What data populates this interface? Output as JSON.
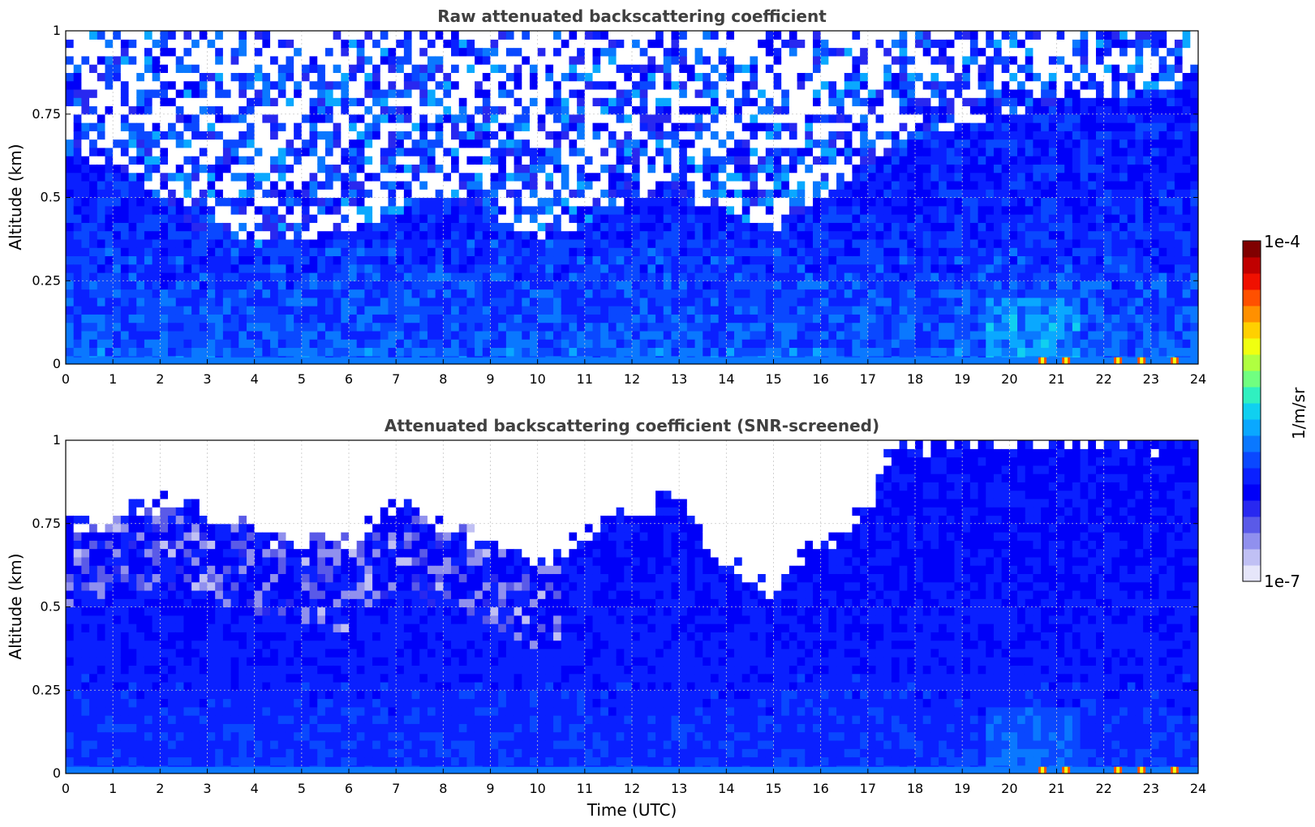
{
  "figure": {
    "shared_xlabel": "Time (UTC)"
  },
  "colorbar": {
    "label": "1/m/sr",
    "min_label": "1e-7",
    "max_label": "1e-4",
    "colors": [
      "#e6e6fa",
      "#c0c0f4",
      "#9090ee",
      "#5a5ae8",
      "#2828f0",
      "#0000f8",
      "#0a20ff",
      "#0a48ff",
      "#0a78ff",
      "#0aa8ff",
      "#10d0f0",
      "#30f0c0",
      "#70ff80",
      "#b0ff40",
      "#f0ff10",
      "#ffd000",
      "#ff9000",
      "#ff5000",
      "#f01000",
      "#c00000",
      "#800000"
    ]
  },
  "chart_data": [
    {
      "type": "heatmap",
      "title": "Raw attenuated backscattering coefficient",
      "xlabel": "",
      "ylabel": "Altitude (km)",
      "xlim": [
        0,
        24
      ],
      "ylim": [
        0,
        1
      ],
      "xticks": [
        "0",
        "1",
        "2",
        "3",
        "4",
        "5",
        "6",
        "7",
        "8",
        "9",
        "10",
        "11",
        "12",
        "13",
        "14",
        "15",
        "16",
        "17",
        "18",
        "19",
        "20",
        "21",
        "22",
        "23",
        "24"
      ],
      "yticks": [
        "0",
        "0.25",
        "0.5",
        "0.75",
        "1"
      ],
      "grid": true,
      "colorscale": "log",
      "value_range": [
        1e-07,
        0.0001
      ],
      "noise_boundary_km": {
        "time": [
          0,
          1,
          2,
          3,
          4,
          5,
          6,
          7,
          8,
          9,
          10,
          11,
          12,
          13,
          14,
          15,
          16,
          17,
          18,
          19,
          20,
          21,
          22,
          23,
          24
        ],
        "altitude": [
          0.62,
          0.6,
          0.5,
          0.38,
          0.36,
          0.38,
          0.4,
          0.45,
          0.5,
          0.45,
          0.38,
          0.42,
          0.5,
          0.5,
          0.45,
          0.4,
          0.5,
          0.6,
          0.68,
          0.72,
          0.75,
          0.78,
          0.8,
          0.82,
          0.85
        ]
      },
      "surface_hotspots_time": [
        20.7,
        21.2,
        22.3,
        22.8,
        23.5
      ]
    },
    {
      "type": "heatmap",
      "title": "Attenuated backscattering coefficient (SNR-screened)",
      "xlabel": "Time (UTC)",
      "ylabel": "Altitude (km)",
      "xlim": [
        0,
        24
      ],
      "ylim": [
        0,
        1
      ],
      "xticks": [
        "0",
        "1",
        "2",
        "3",
        "4",
        "5",
        "6",
        "7",
        "8",
        "9",
        "10",
        "11",
        "12",
        "13",
        "14",
        "15",
        "16",
        "17",
        "18",
        "19",
        "20",
        "21",
        "22",
        "23",
        "24"
      ],
      "yticks": [
        "0",
        "0.25",
        "0.5",
        "0.75",
        "1"
      ],
      "grid": true,
      "colorscale": "log",
      "value_range": [
        1e-07,
        0.0001
      ],
      "valid_top_km": {
        "time": [
          0,
          1,
          2,
          3,
          4,
          5,
          6,
          7,
          8,
          9,
          10,
          11,
          12,
          13,
          14,
          15,
          16,
          17,
          17.5,
          18,
          19,
          20,
          21,
          22,
          23,
          24
        ],
        "altitude": [
          0.75,
          0.75,
          0.82,
          0.78,
          0.72,
          0.7,
          0.68,
          0.82,
          0.74,
          0.7,
          0.62,
          0.72,
          0.8,
          0.85,
          0.62,
          0.56,
          0.7,
          0.78,
          1.0,
          1.0,
          1.0,
          1.0,
          1.0,
          1.0,
          1.0,
          1.0
        ]
      },
      "surface_hotspots_time": [
        20.7,
        21.2,
        22.3,
        22.8,
        23.5
      ]
    }
  ]
}
